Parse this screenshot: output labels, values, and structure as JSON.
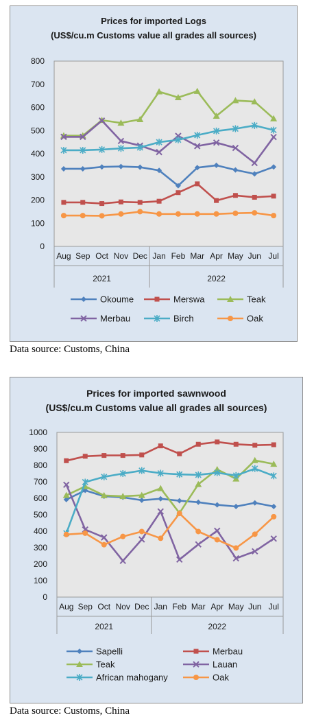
{
  "colors": {
    "blue": "#4f81bd",
    "red": "#c0504d",
    "green": "#9bbb59",
    "purple": "#8064a2",
    "cyan": "#4bacc6",
    "orange": "#f79646",
    "plot_bg": "#e7e7e7",
    "panel_bg": "#dbe5f1"
  },
  "captions": {
    "logs": "Data source: Customs, China",
    "sawn": "Data source: Customs, China"
  },
  "chart_data": [
    {
      "type": "line",
      "title": "Prices for imported Logs",
      "subtitle": "(US$/cu.m Customs value all grades all sources)",
      "categories": [
        "Aug",
        "Sep",
        "Oct",
        "Nov",
        "Dec",
        "Jan",
        "Feb",
        "Mar",
        "Apr",
        "May",
        "Jun",
        "Jul"
      ],
      "year_groups": [
        {
          "label": "2021",
          "count": 5
        },
        {
          "label": "2022",
          "count": 7
        }
      ],
      "ylim": [
        0,
        800
      ],
      "yticks": [
        "0",
        "100",
        "200",
        "300",
        "400",
        "500",
        "600",
        "700",
        "800"
      ],
      "grid": false,
      "legend_position": "bottom",
      "series": [
        {
          "name": "Okoume",
          "color": "#4f81bd",
          "marker": "diamond",
          "values": [
            335,
            335,
            343,
            345,
            342,
            328,
            262,
            340,
            350,
            330,
            313,
            343
          ]
        },
        {
          "name": "Merswa",
          "color": "#c0504d",
          "marker": "square",
          "values": [
            190,
            190,
            185,
            192,
            190,
            195,
            232,
            270,
            198,
            220,
            212,
            217
          ]
        },
        {
          "name": "Teak",
          "color": "#9bbb59",
          "marker": "triangle",
          "values": [
            478,
            478,
            545,
            533,
            548,
            668,
            643,
            670,
            563,
            630,
            625,
            552
          ]
        },
        {
          "name": "Merbau",
          "color": "#8064a2",
          "marker": "x",
          "values": [
            473,
            473,
            543,
            455,
            435,
            407,
            477,
            433,
            448,
            425,
            360,
            472
          ]
        },
        {
          "name": "Birch",
          "color": "#4bacc6",
          "marker": "star",
          "values": [
            415,
            415,
            418,
            423,
            427,
            450,
            460,
            480,
            498,
            508,
            522,
            502
          ]
        },
        {
          "name": "Oak",
          "color": "#f79646",
          "marker": "circle",
          "values": [
            133,
            133,
            132,
            140,
            150,
            140,
            140,
            140,
            140,
            143,
            145,
            133
          ]
        }
      ]
    },
    {
      "type": "line",
      "title": "Prices for imported sawnwood",
      "subtitle": "(US$/cu.m Customs value all grades all sources)",
      "categories": [
        "Aug",
        "Sep",
        "Oct",
        "Nov",
        "Dec",
        "Jan",
        "Feb",
        "Mar",
        "Apr",
        "May",
        "Jun",
        "Jul"
      ],
      "year_groups": [
        {
          "label": "2021",
          "count": 5
        },
        {
          "label": "2022",
          "count": 7
        }
      ],
      "ylim": [
        0,
        1000
      ],
      "yticks": [
        "0",
        "100",
        "200",
        "300",
        "400",
        "500",
        "600",
        "700",
        "800",
        "900",
        "1000"
      ],
      "grid": false,
      "legend_position": "bottom",
      "series": [
        {
          "name": "Sapelli",
          "color": "#4f81bd",
          "marker": "diamond",
          "values": [
            592,
            648,
            612,
            606,
            588,
            597,
            585,
            576,
            560,
            550,
            572,
            550
          ]
        },
        {
          "name": "Merbau",
          "color": "#c0504d",
          "marker": "square",
          "values": [
            828,
            855,
            860,
            860,
            863,
            918,
            870,
            928,
            942,
            928,
            922,
            925
          ]
        },
        {
          "name": "Teak",
          "color": "#9bbb59",
          "marker": "triangle",
          "values": [
            618,
            672,
            617,
            612,
            618,
            660,
            510,
            685,
            775,
            718,
            830,
            808
          ]
        },
        {
          "name": "Lauan",
          "color": "#8064a2",
          "marker": "x",
          "values": [
            682,
            410,
            362,
            220,
            350,
            520,
            228,
            320,
            403,
            235,
            278,
            355
          ]
        },
        {
          "name": "African mahogany",
          "color": "#4bacc6",
          "marker": "star",
          "values": [
            388,
            698,
            730,
            750,
            768,
            752,
            745,
            742,
            755,
            738,
            780,
            736
          ]
        },
        {
          "name": "Oak",
          "color": "#f79646",
          "marker": "circle",
          "values": [
            380,
            388,
            318,
            368,
            398,
            357,
            508,
            398,
            348,
            298,
            382,
            488
          ]
        }
      ]
    }
  ]
}
